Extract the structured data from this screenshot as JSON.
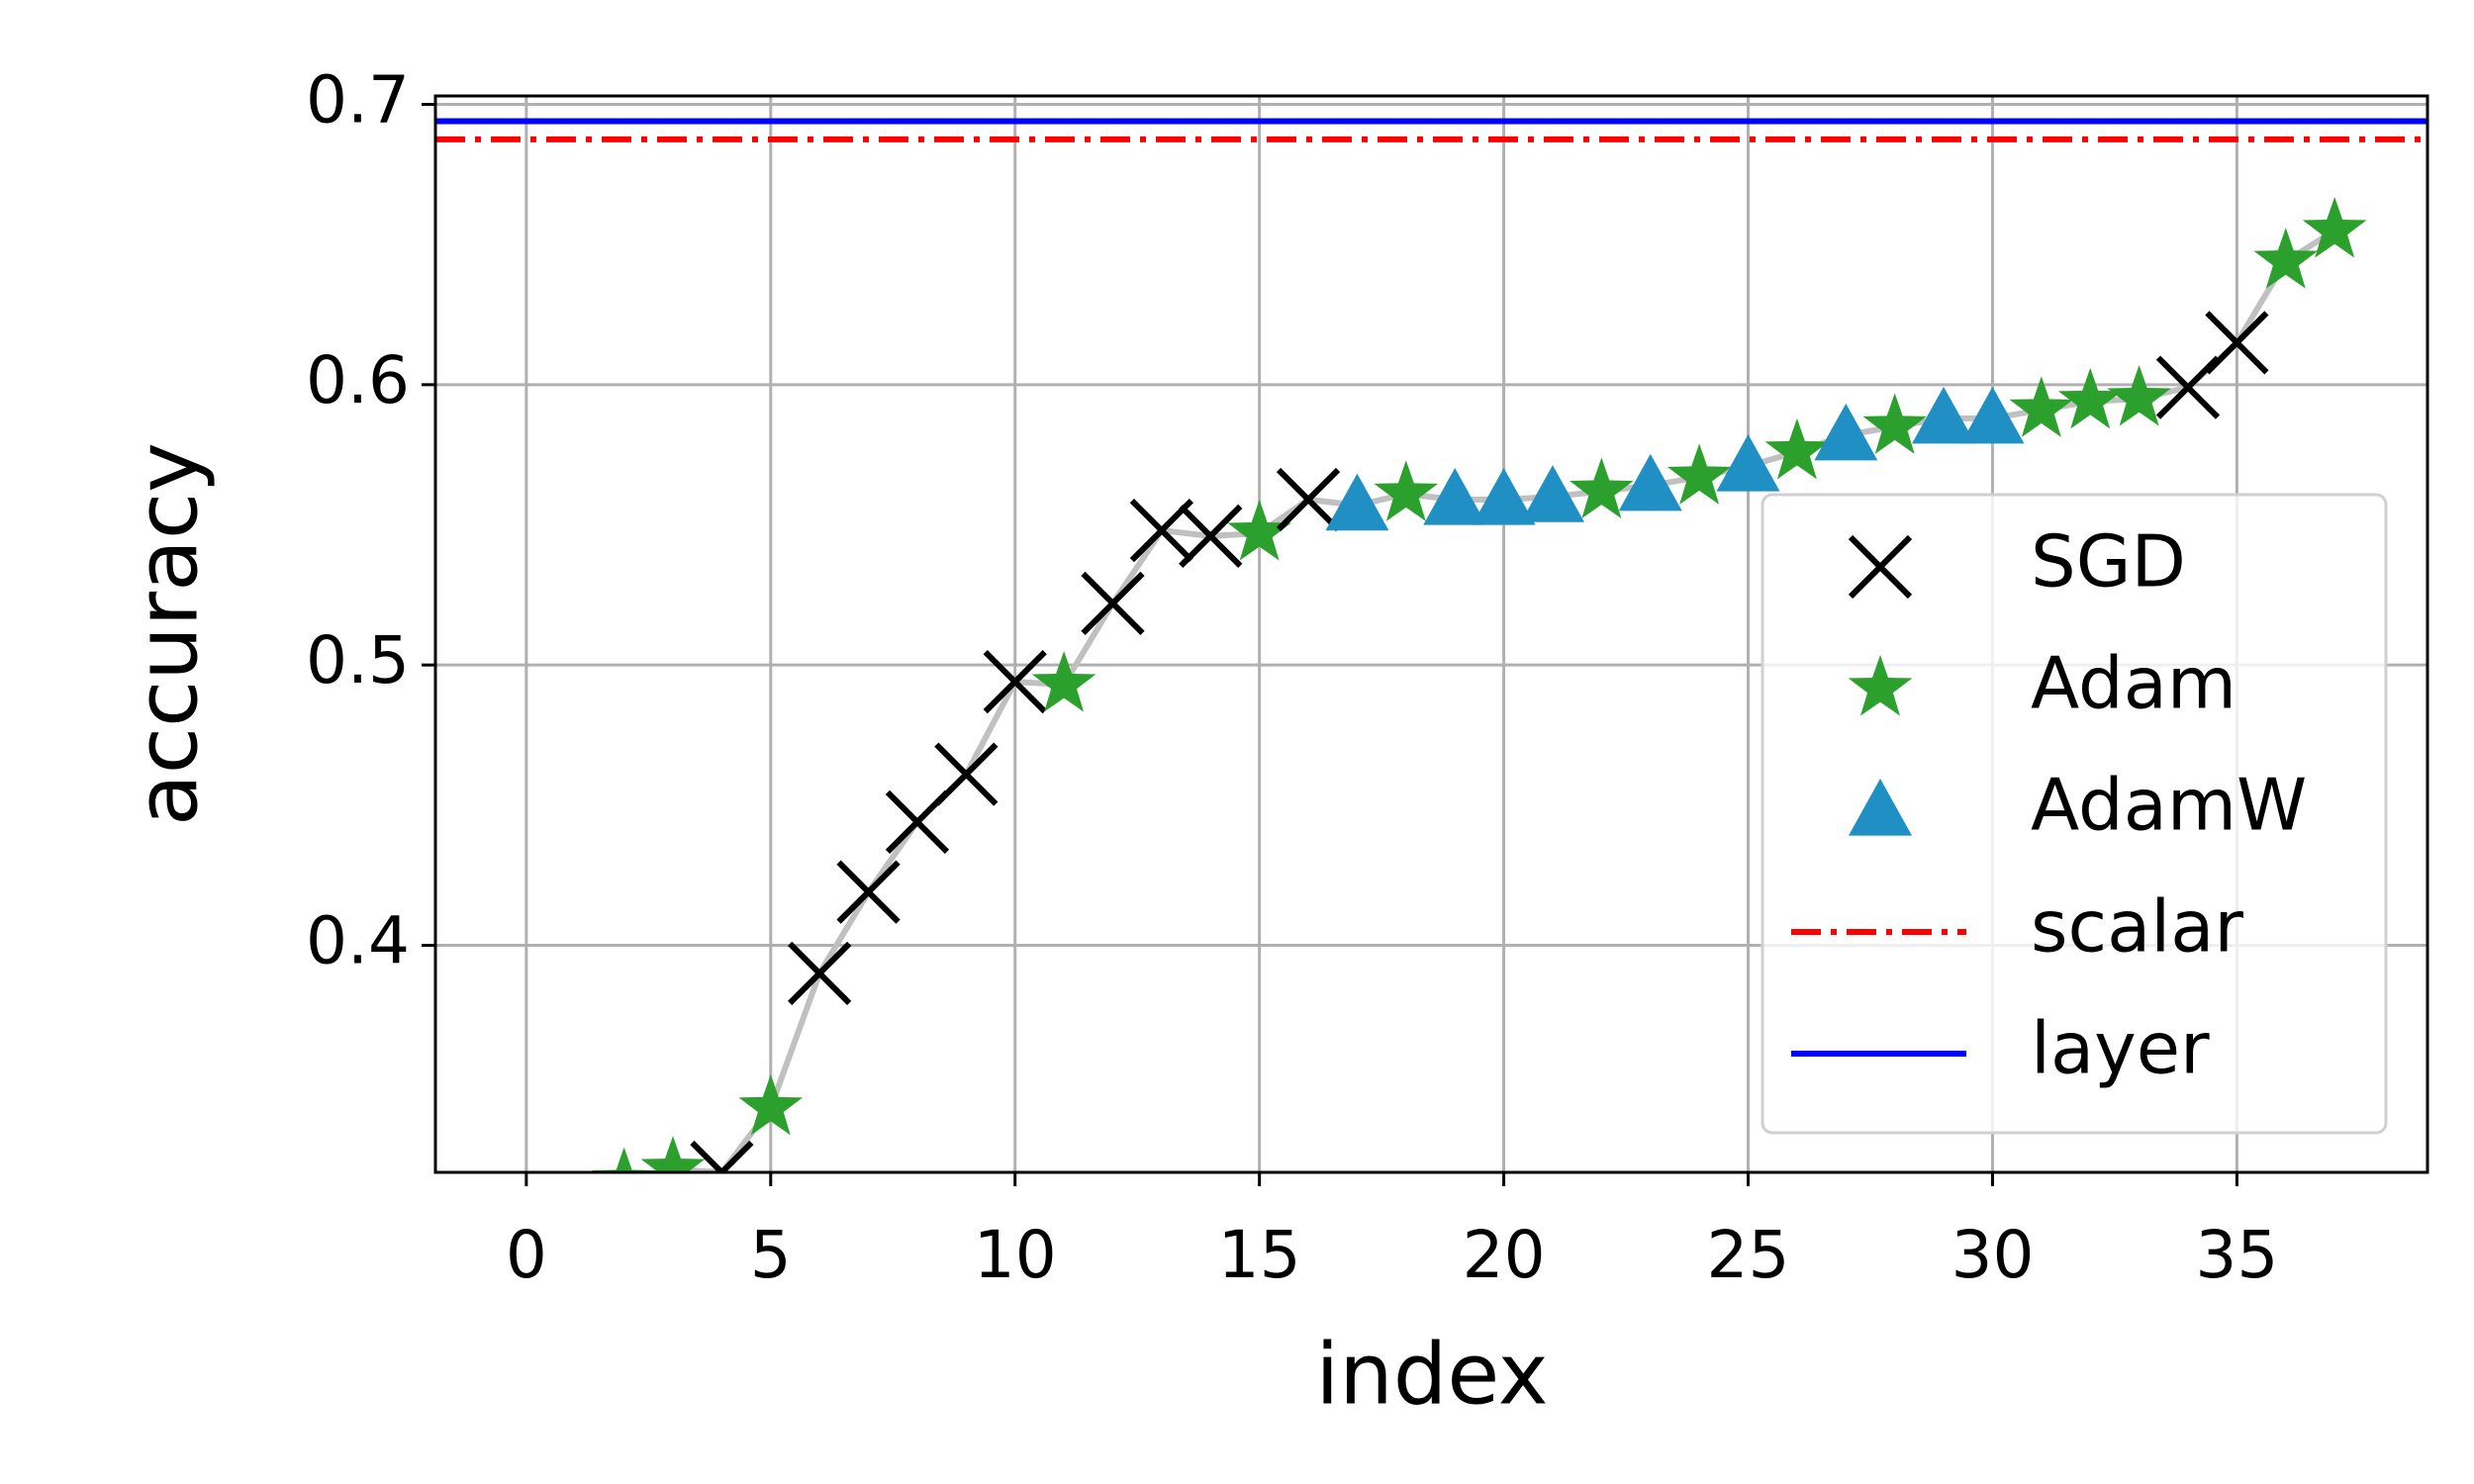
{
  "chart_data": {
    "type": "scatter",
    "x_label": "index",
    "y_label": "accuracy",
    "xlim": [
      -1.86,
      38.9
    ],
    "ylim": [
      0.319,
      0.703
    ],
    "xticks": [
      0,
      5,
      10,
      15,
      20,
      25,
      30,
      35
    ],
    "yticks": [
      0.4,
      0.5,
      0.6,
      0.7
    ],
    "grid": true,
    "legend": "lower right",
    "line_color": "#c0c0c0",
    "series": [
      {
        "name": "SGD",
        "color": "#000000",
        "marker": "x"
      },
      {
        "name": "Adam",
        "color": "#2ca02c",
        "marker": "star"
      },
      {
        "name": "AdamW",
        "color": "#1f8fc4",
        "marker": "triangle"
      }
    ],
    "points": {
      "x": [
        2,
        3,
        4,
        5,
        6,
        7,
        8,
        9,
        10,
        11,
        12,
        13,
        14,
        15,
        16,
        17,
        18,
        19,
        20,
        21,
        22,
        23,
        24,
        25,
        26,
        27,
        28,
        29,
        30,
        31,
        32,
        33,
        34,
        35,
        36,
        37
      ],
      "values": [
        0.316,
        0.32,
        0.319,
        0.342,
        0.39,
        0.419,
        0.444,
        0.461,
        0.494,
        0.493,
        0.522,
        0.548,
        0.546,
        0.547,
        0.559,
        0.557,
        0.561,
        0.559,
        0.559,
        0.56,
        0.562,
        0.564,
        0.567,
        0.571,
        0.576,
        0.582,
        0.585,
        0.588,
        0.588,
        0.591,
        0.594,
        0.595,
        0.599,
        0.615,
        0.644,
        0.655
      ],
      "optimizer": [
        "Adam",
        "Adam",
        "SGD",
        "Adam",
        "SGD",
        "SGD",
        "SGD",
        "SGD",
        "SGD",
        "Adam",
        "SGD",
        "SGD",
        "SGD",
        "Adam",
        "SGD",
        "AdamW",
        "Adam",
        "AdamW",
        "AdamW",
        "AdamW",
        "Adam",
        "AdamW",
        "Adam",
        "AdamW",
        "Adam",
        "AdamW",
        "Adam",
        "AdamW",
        "AdamW",
        "Adam",
        "Adam",
        "Adam",
        "SGD",
        "SGD",
        "Adam",
        "Adam"
      ]
    },
    "reference_lines": [
      {
        "name": "scalar",
        "value": 0.6875,
        "color": "#ff0000",
        "style": "dashdot"
      },
      {
        "name": "layer",
        "value": 0.694,
        "color": "#0000ff",
        "style": "solid"
      }
    ]
  }
}
